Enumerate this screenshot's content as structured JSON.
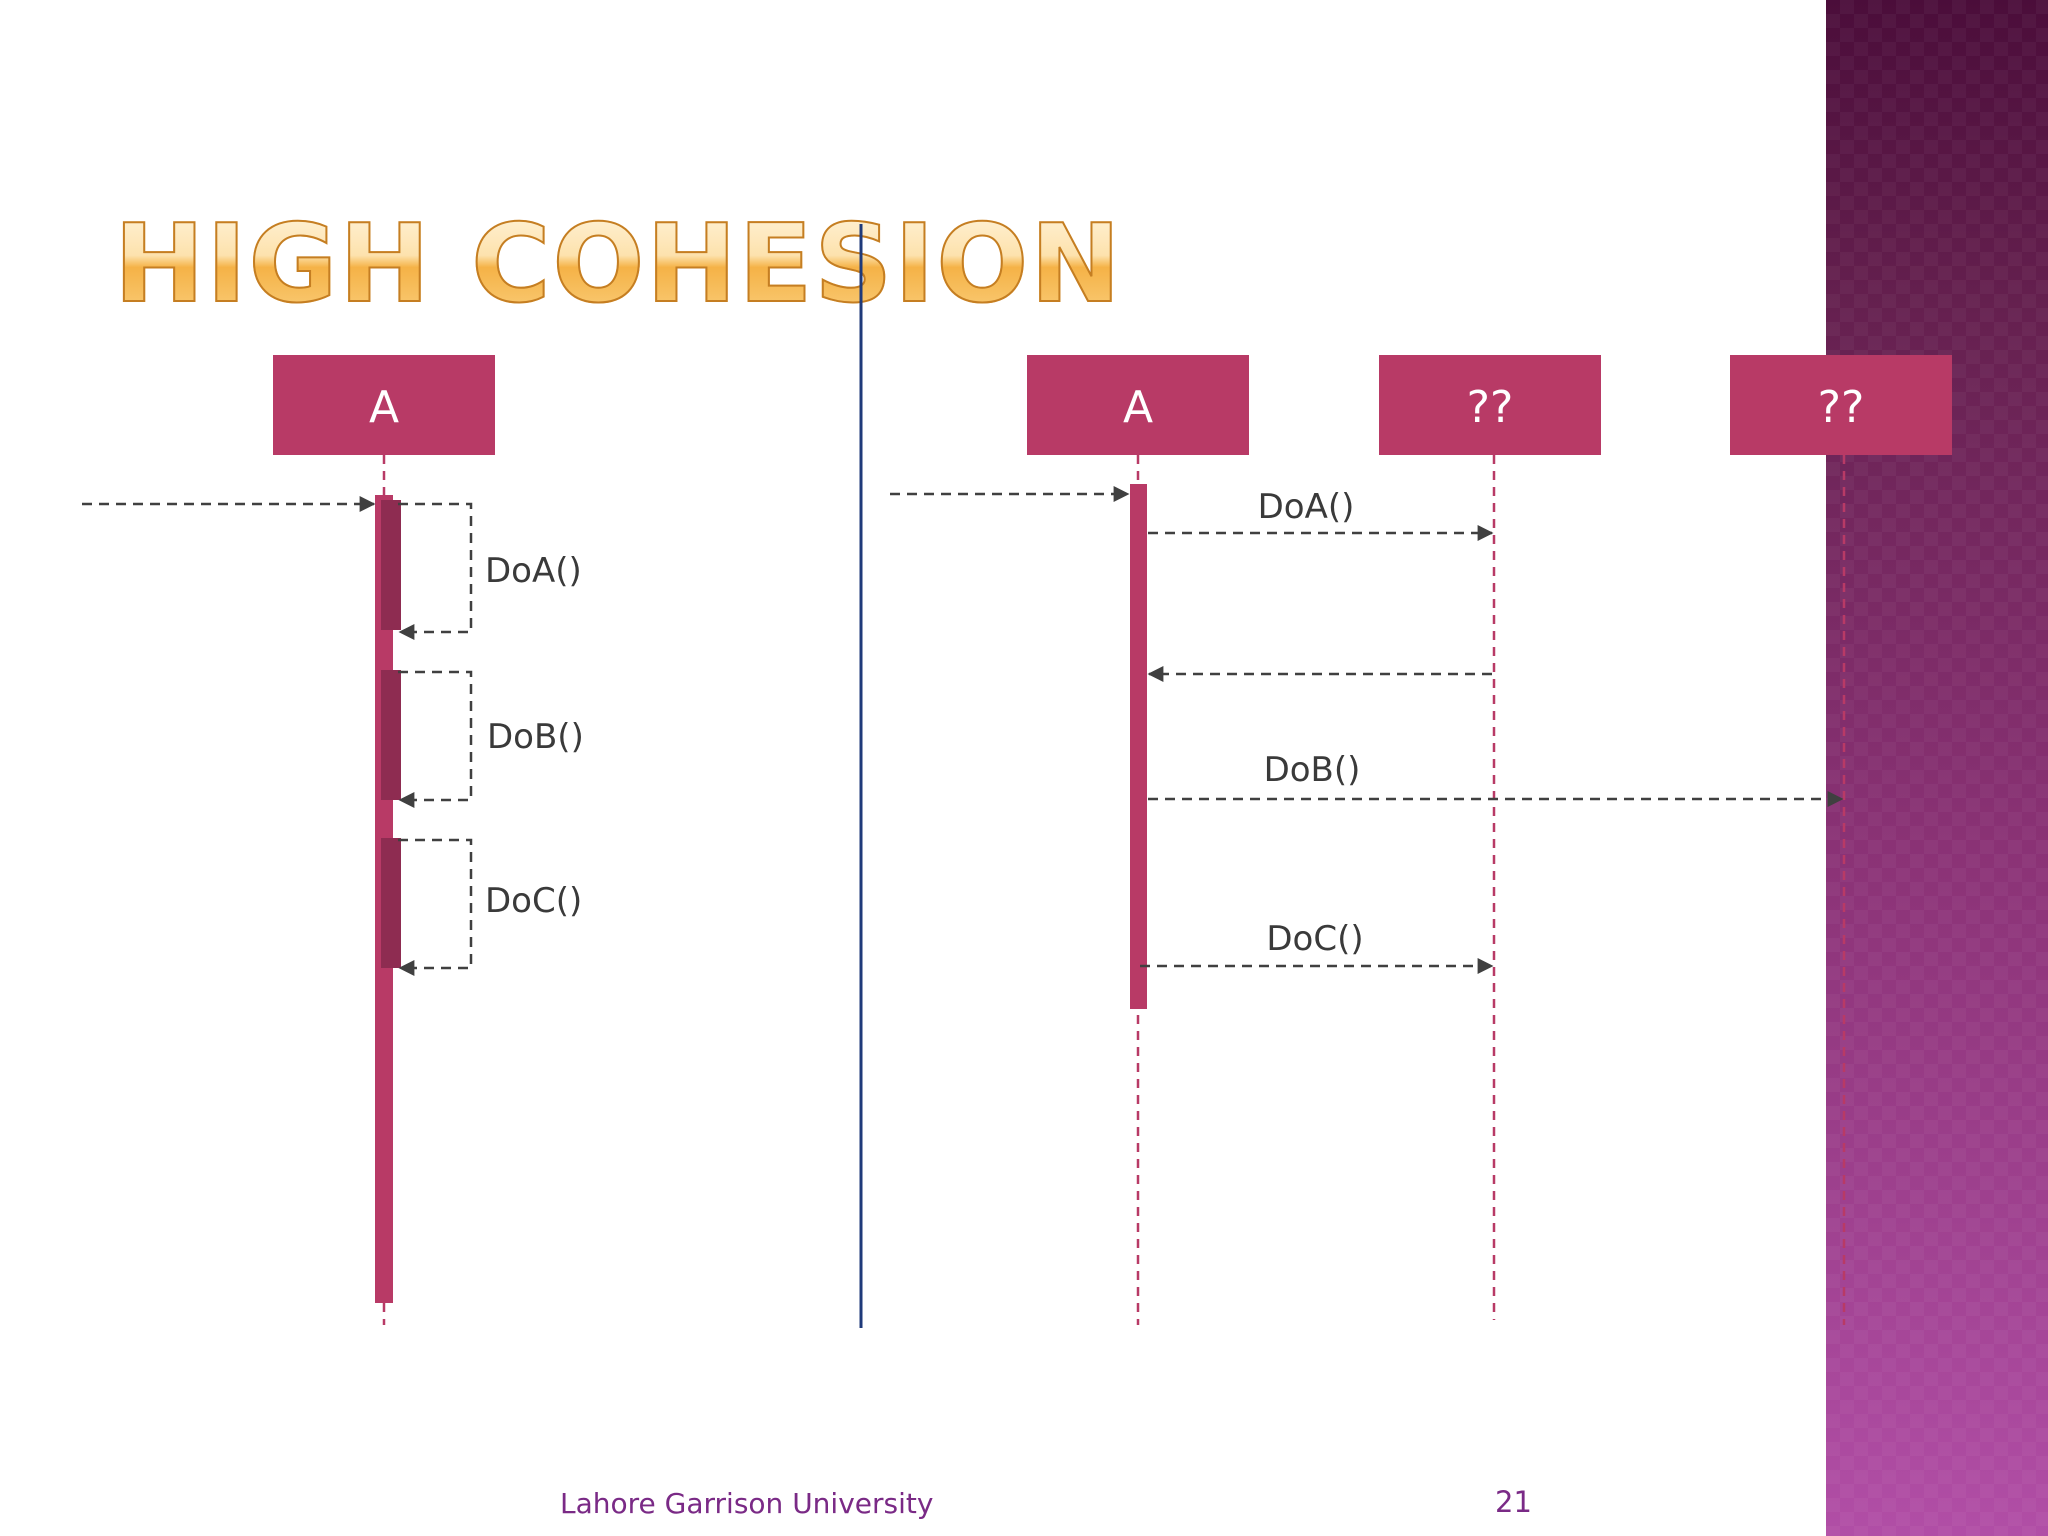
{
  "slide": {
    "title": "HIGH COHESION",
    "footer_text": "Lahore Garrison University",
    "page_number": "21"
  },
  "diagram": {
    "left": {
      "lifeline_label": "A",
      "self_calls": [
        "DoA()",
        "DoB()",
        "DoC()"
      ]
    },
    "right": {
      "lifelines": [
        "A",
        "??",
        "??"
      ],
      "messages": [
        {
          "label": "DoA()",
          "from": "A",
          "to": "?? (1)"
        },
        {
          "label": "",
          "from": "?? (1)",
          "to": "A",
          "kind": "return"
        },
        {
          "label": "DoB()",
          "from": "A",
          "to": "?? (2)"
        },
        {
          "label": "DoC()",
          "from": "A",
          "to": "?? (1)"
        }
      ]
    }
  },
  "colors": {
    "lifeline_box": "#b83a66",
    "activation": "#b83a66",
    "activation_dark": "#8e2c51",
    "divider": "#1f3a7a",
    "message": "#404040",
    "title_fill": "#f5b247",
    "footer": "#7a2a86",
    "band_top": "#4b0d3a",
    "band_bottom": "#b14ea6"
  }
}
